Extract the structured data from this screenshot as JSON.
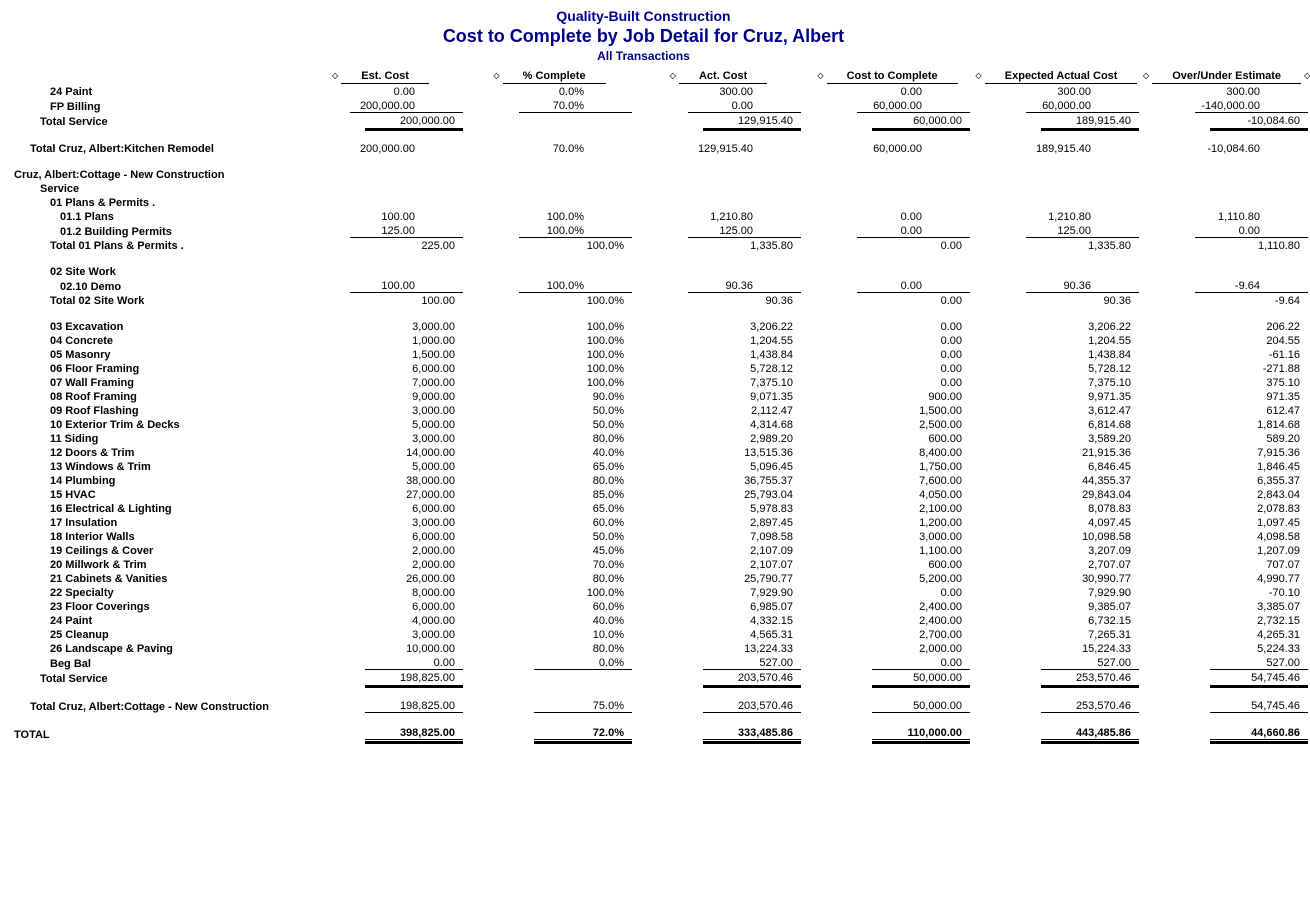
{
  "header": {
    "company": "Quality-Built Construction",
    "title": "Cost to Complete by Job Detail for Cruz, Albert",
    "subtitle": "All Transactions"
  },
  "columns": [
    "Est. Cost",
    "% Complete",
    "Act. Cost",
    "Cost to Complete",
    "Expected Actual Cost",
    "Over/Under Estimate"
  ],
  "rows": [
    {
      "label": "24 Paint",
      "indent": 3,
      "bold": true,
      "vals": [
        "0.00",
        "0.0%",
        "300.00",
        "0.00",
        "300.00",
        "300.00"
      ]
    },
    {
      "label": "FP Billing",
      "indent": 3,
      "bold": true,
      "under": "single",
      "vals": [
        "200,000.00",
        "70.0%",
        "0.00",
        "60,000.00",
        "60,000.00",
        "-140,000.00"
      ]
    },
    {
      "label": "Total Service",
      "indent": 2,
      "bold": true,
      "under": "thick",
      "widthClass": "w2",
      "vals": [
        "200,000.00",
        "",
        "129,915.40",
        "60,000.00",
        "189,915.40",
        "-10,084.60"
      ]
    },
    {
      "spacer": true
    },
    {
      "label": "Total Cruz, Albert:Kitchen Remodel",
      "indent": 1,
      "bold": true,
      "vals": [
        "200,000.00",
        "70.0%",
        "129,915.40",
        "60,000.00",
        "189,915.40",
        "-10,084.60"
      ]
    },
    {
      "spacer": true
    },
    {
      "label": "Cruz, Albert:Cottage - New Construction",
      "indent": 0,
      "bold": true,
      "vals": [
        "",
        "",
        "",
        "",
        "",
        ""
      ]
    },
    {
      "label": "Service",
      "indent": 2,
      "bold": true,
      "vals": [
        "",
        "",
        "",
        "",
        "",
        ""
      ]
    },
    {
      "label": "01 Plans & Permits  .",
      "indent": 3,
      "bold": true,
      "vals": [
        "",
        "",
        "",
        "",
        "",
        ""
      ]
    },
    {
      "label": "01.1 Plans",
      "indent": 4,
      "bold": true,
      "vals": [
        "100.00",
        "100.0%",
        "1,210.80",
        "0.00",
        "1,210.80",
        "1,110.80"
      ]
    },
    {
      "label": "01.2 Building Permits",
      "indent": 4,
      "bold": true,
      "under": "single",
      "vals": [
        "125.00",
        "100.0%",
        "125.00",
        "0.00",
        "125.00",
        "0.00"
      ]
    },
    {
      "label": "Total 01 Plans & Permits  .",
      "indent": 3,
      "bold": true,
      "widthClass": "w2",
      "vals": [
        "225.00",
        "100.0%",
        "1,335.80",
        "0.00",
        "1,335.80",
        "1,110.80"
      ]
    },
    {
      "spacer": true
    },
    {
      "label": "02 Site Work",
      "indent": 3,
      "bold": true,
      "vals": [
        "",
        "",
        "",
        "",
        "",
        ""
      ]
    },
    {
      "label": "02.10 Demo",
      "indent": 4,
      "bold": true,
      "under": "single",
      "vals": [
        "100.00",
        "100.0%",
        "90.36",
        "0.00",
        "90.36",
        "-9.64"
      ]
    },
    {
      "label": "Total 02 Site Work",
      "indent": 3,
      "bold": true,
      "widthClass": "w2",
      "vals": [
        "100.00",
        "100.0%",
        "90.36",
        "0.00",
        "90.36",
        "-9.64"
      ]
    },
    {
      "spacer": true
    },
    {
      "label": "03 Excavation",
      "indent": 3,
      "bold": true,
      "widthClass": "w2",
      "vals": [
        "3,000.00",
        "100.0%",
        "3,206.22",
        "0.00",
        "3,206.22",
        "206.22"
      ]
    },
    {
      "label": "04 Concrete",
      "indent": 3,
      "bold": true,
      "widthClass": "w2",
      "vals": [
        "1,000.00",
        "100.0%",
        "1,204.55",
        "0.00",
        "1,204.55",
        "204.55"
      ]
    },
    {
      "label": "05 Masonry",
      "indent": 3,
      "bold": true,
      "widthClass": "w2",
      "vals": [
        "1,500.00",
        "100.0%",
        "1,438.84",
        "0.00",
        "1,438.84",
        "-61.16"
      ]
    },
    {
      "label": "06 Floor Framing",
      "indent": 3,
      "bold": true,
      "widthClass": "w2",
      "vals": [
        "6,000.00",
        "100.0%",
        "5,728.12",
        "0.00",
        "5,728.12",
        "-271.88"
      ]
    },
    {
      "label": "07 Wall Framing",
      "indent": 3,
      "bold": true,
      "widthClass": "w2",
      "vals": [
        "7,000.00",
        "100.0%",
        "7,375.10",
        "0.00",
        "7,375.10",
        "375.10"
      ]
    },
    {
      "label": "08 Roof Framing",
      "indent": 3,
      "bold": true,
      "widthClass": "w2",
      "vals": [
        "9,000.00",
        "90.0%",
        "9,071.35",
        "900.00",
        "9,971.35",
        "971.35"
      ]
    },
    {
      "label": "09 Roof Flashing",
      "indent": 3,
      "bold": true,
      "widthClass": "w2",
      "vals": [
        "3,000.00",
        "50.0%",
        "2,112.47",
        "1,500.00",
        "3,612.47",
        "612.47"
      ]
    },
    {
      "label": "10 Exterior Trim & Decks",
      "indent": 3,
      "bold": true,
      "widthClass": "w2",
      "vals": [
        "5,000.00",
        "50.0%",
        "4,314.68",
        "2,500.00",
        "6,814.68",
        "1,814.68"
      ]
    },
    {
      "label": "11 Siding",
      "indent": 3,
      "bold": true,
      "widthClass": "w2",
      "vals": [
        "3,000.00",
        "80.0%",
        "2,989.20",
        "600.00",
        "3,589.20",
        "589.20"
      ]
    },
    {
      "label": "12 Doors & Trim",
      "indent": 3,
      "bold": true,
      "widthClass": "w2",
      "vals": [
        "14,000.00",
        "40.0%",
        "13,515.36",
        "8,400.00",
        "21,915.36",
        "7,915.36"
      ]
    },
    {
      "label": "13 Windows & Trim",
      "indent": 3,
      "bold": true,
      "widthClass": "w2",
      "vals": [
        "5,000.00",
        "65.0%",
        "5,096.45",
        "1,750.00",
        "6,846.45",
        "1,846.45"
      ]
    },
    {
      "label": "14 Plumbing",
      "indent": 3,
      "bold": true,
      "widthClass": "w2",
      "vals": [
        "38,000.00",
        "80.0%",
        "36,755.37",
        "7,600.00",
        "44,355.37",
        "6,355.37"
      ]
    },
    {
      "label": "15 HVAC",
      "indent": 3,
      "bold": true,
      "widthClass": "w2",
      "vals": [
        "27,000.00",
        "85.0%",
        "25,793.04",
        "4,050.00",
        "29,843.04",
        "2,843.04"
      ]
    },
    {
      "label": "16 Electrical & Lighting",
      "indent": 3,
      "bold": true,
      "widthClass": "w2",
      "vals": [
        "6,000.00",
        "65.0%",
        "5,978.83",
        "2,100.00",
        "8,078.83",
        "2,078.83"
      ]
    },
    {
      "label": "17 Insulation",
      "indent": 3,
      "bold": true,
      "widthClass": "w2",
      "vals": [
        "3,000.00",
        "60.0%",
        "2,897.45",
        "1,200.00",
        "4,097.45",
        "1,097.45"
      ]
    },
    {
      "label": "18 Interior Walls",
      "indent": 3,
      "bold": true,
      "widthClass": "w2",
      "vals": [
        "6,000.00",
        "50.0%",
        "7,098.58",
        "3,000.00",
        "10,098.58",
        "4,098.58"
      ]
    },
    {
      "label": "19 Ceilings & Cover",
      "indent": 3,
      "bold": true,
      "widthClass": "w2",
      "vals": [
        "2,000.00",
        "45.0%",
        "2,107.09",
        "1,100.00",
        "3,207.09",
        "1,207.09"
      ]
    },
    {
      "label": "20 Millwork & Trim",
      "indent": 3,
      "bold": true,
      "widthClass": "w2",
      "vals": [
        "2,000.00",
        "70.0%",
        "2,107.07",
        "600.00",
        "2,707.07",
        "707.07"
      ]
    },
    {
      "label": "21 Cabinets & Vanities",
      "indent": 3,
      "bold": true,
      "widthClass": "w2",
      "vals": [
        "26,000.00",
        "80.0%",
        "25,790.77",
        "5,200.00",
        "30,990.77",
        "4,990.77"
      ]
    },
    {
      "label": "22 Specialty",
      "indent": 3,
      "bold": true,
      "widthClass": "w2",
      "vals": [
        "8,000.00",
        "100.0%",
        "7,929.90",
        "0.00",
        "7,929.90",
        "-70.10"
      ]
    },
    {
      "label": "23 Floor Coverings",
      "indent": 3,
      "bold": true,
      "widthClass": "w2",
      "vals": [
        "6,000.00",
        "60.0%",
        "6,985.07",
        "2,400.00",
        "9,385.07",
        "3,385.07"
      ]
    },
    {
      "label": "24 Paint",
      "indent": 3,
      "bold": true,
      "widthClass": "w2",
      "vals": [
        "4,000.00",
        "40.0%",
        "4,332.15",
        "2,400.00",
        "6,732.15",
        "2,732.15"
      ]
    },
    {
      "label": "25 Cleanup",
      "indent": 3,
      "bold": true,
      "widthClass": "w2",
      "vals": [
        "3,000.00",
        "10.0%",
        "4,565.31",
        "2,700.00",
        "7,265.31",
        "4,265.31"
      ]
    },
    {
      "label": "26 Landscape & Paving",
      "indent": 3,
      "bold": true,
      "widthClass": "w2",
      "vals": [
        "10,000.00",
        "80.0%",
        "13,224.33",
        "2,000.00",
        "15,224.33",
        "5,224.33"
      ]
    },
    {
      "label": "Beg Bal",
      "indent": 3,
      "bold": true,
      "widthClass": "w2",
      "under": "single",
      "vals": [
        "0.00",
        "0.0%",
        "527.00",
        "0.00",
        "527.00",
        "527.00"
      ]
    },
    {
      "label": "Total Service",
      "indent": 2,
      "bold": true,
      "under": "thick",
      "widthClass": "w2",
      "vals": [
        "198,825.00",
        "",
        "203,570.46",
        "50,000.00",
        "253,570.46",
        "54,745.46"
      ]
    },
    {
      "spacer": true
    },
    {
      "label": "Total Cruz, Albert:Cottage - New Construction",
      "indent": 1,
      "bold": true,
      "under": "single",
      "widthClass": "w2",
      "vals": [
        "198,825.00",
        "75.0%",
        "203,570.46",
        "50,000.00",
        "253,570.46",
        "54,745.46"
      ]
    },
    {
      "spacer": true
    },
    {
      "label": "TOTAL",
      "indent": 0,
      "bold": true,
      "under": "double",
      "widthClass": "w2",
      "vals": [
        "398,825.00",
        "72.0%",
        "333,485.86",
        "110,000.00",
        "443,485.86",
        "44,660.86"
      ]
    }
  ]
}
